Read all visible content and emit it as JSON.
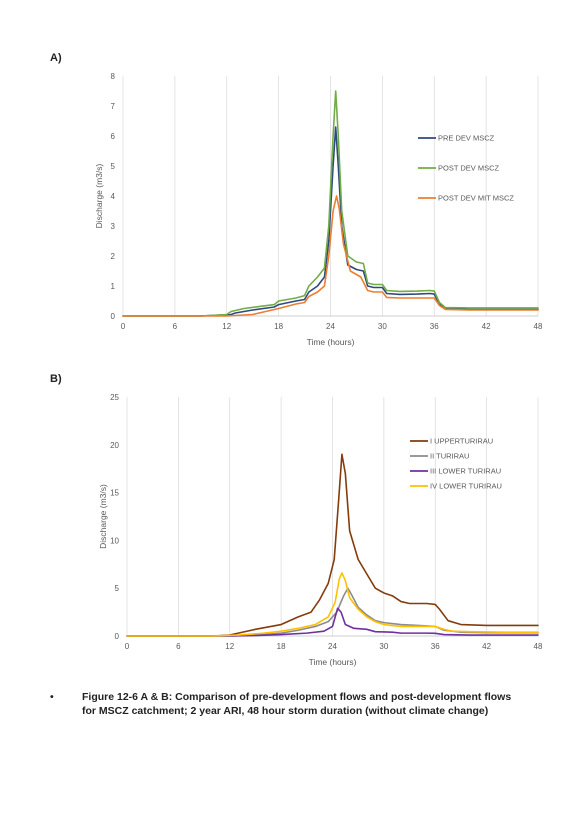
{
  "panels": {
    "a_label": "A)",
    "b_label": "B)"
  },
  "caption": {
    "bullet": "•",
    "text": "Figure 12-6 A & B: Comparison of pre-development flows and post-development flows for MSCZ catchment; 2 year ARI, 48 hour storm duration (without climate change)"
  },
  "chart_data": [
    {
      "type": "line",
      "panel": "A)",
      "xlabel": "Time (hours)",
      "ylabel": "Discharge (m3/s)",
      "xlim": [
        0,
        48
      ],
      "ylim": [
        0,
        8
      ],
      "xticks": [
        0,
        6,
        12,
        18,
        24,
        30,
        36,
        42,
        48
      ],
      "yticks": [
        0,
        1,
        2,
        3,
        4,
        5,
        6,
        7,
        8
      ],
      "grid": "vertical",
      "legend": "right",
      "series": [
        {
          "name": "PRE DEV MSCZ",
          "color": "#2e4a7d",
          "points": [
            [
              0,
              0
            ],
            [
              9,
              0
            ],
            [
              12.5,
              0.05
            ],
            [
              13,
              0.1
            ],
            [
              15,
              0.2
            ],
            [
              17.5,
              0.3
            ],
            [
              18,
              0.38
            ],
            [
              20,
              0.5
            ],
            [
              21,
              0.55
            ],
            [
              21.5,
              0.8
            ],
            [
              22.5,
              1.0
            ],
            [
              23.3,
              1.3
            ],
            [
              23.8,
              2.5
            ],
            [
              24.3,
              5.0
            ],
            [
              24.6,
              6.3
            ],
            [
              24.9,
              5.0
            ],
            [
              25.3,
              3.0
            ],
            [
              26,
              1.7
            ],
            [
              27,
              1.55
            ],
            [
              27.8,
              1.5
            ],
            [
              28.3,
              1.0
            ],
            [
              29,
              0.95
            ],
            [
              30,
              0.95
            ],
            [
              30.5,
              0.75
            ],
            [
              32,
              0.72
            ],
            [
              34,
              0.73
            ],
            [
              35.5,
              0.75
            ],
            [
              36,
              0.73
            ],
            [
              36.6,
              0.4
            ],
            [
              37.3,
              0.25
            ],
            [
              40,
              0.22
            ],
            [
              44,
              0.22
            ],
            [
              48,
              0.22
            ]
          ]
        },
        {
          "name": "POST DEV MSCZ",
          "color": "#70ad47",
          "points": [
            [
              0,
              0
            ],
            [
              9,
              0
            ],
            [
              12,
              0.05
            ],
            [
              12.5,
              0.15
            ],
            [
              14,
              0.25
            ],
            [
              17.5,
              0.38
            ],
            [
              18,
              0.5
            ],
            [
              20,
              0.6
            ],
            [
              21,
              0.68
            ],
            [
              21.5,
              1.0
            ],
            [
              22.5,
              1.3
            ],
            [
              23.3,
              1.6
            ],
            [
              23.8,
              3.0
            ],
            [
              24.3,
              6.0
            ],
            [
              24.6,
              7.5
            ],
            [
              24.9,
              6.0
            ],
            [
              25.3,
              3.5
            ],
            [
              26,
              2.0
            ],
            [
              27,
              1.8
            ],
            [
              27.8,
              1.75
            ],
            [
              28.3,
              1.1
            ],
            [
              29,
              1.05
            ],
            [
              30,
              1.05
            ],
            [
              30.5,
              0.85
            ],
            [
              32,
              0.82
            ],
            [
              34,
              0.83
            ],
            [
              35.5,
              0.85
            ],
            [
              36,
              0.83
            ],
            [
              36.6,
              0.45
            ],
            [
              37.3,
              0.28
            ],
            [
              40,
              0.27
            ],
            [
              44,
              0.27
            ],
            [
              48,
              0.27
            ]
          ]
        },
        {
          "name": "POST DEV MIT MSCZ",
          "color": "#ed7d31",
          "points": [
            [
              0,
              0
            ],
            [
              12,
              0
            ],
            [
              15,
              0.05
            ],
            [
              18,
              0.25
            ],
            [
              20,
              0.4
            ],
            [
              21,
              0.45
            ],
            [
              21.5,
              0.65
            ],
            [
              22.5,
              0.8
            ],
            [
              23.3,
              1.0
            ],
            [
              23.8,
              2.0
            ],
            [
              24.3,
              3.5
            ],
            [
              24.7,
              4.0
            ],
            [
              25,
              3.6
            ],
            [
              25.5,
              2.4
            ],
            [
              26.3,
              1.5
            ],
            [
              27.5,
              1.3
            ],
            [
              28.3,
              0.85
            ],
            [
              29,
              0.8
            ],
            [
              30,
              0.8
            ],
            [
              30.5,
              0.62
            ],
            [
              32,
              0.6
            ],
            [
              34,
              0.6
            ],
            [
              36,
              0.6
            ],
            [
              36.6,
              0.35
            ],
            [
              37.3,
              0.22
            ],
            [
              40,
              0.2
            ],
            [
              44,
              0.2
            ],
            [
              48,
              0.2
            ]
          ]
        }
      ]
    },
    {
      "type": "line",
      "panel": "B)",
      "xlabel": "Time (hours)",
      "ylabel": "Discharge (m3/s)",
      "xlim": [
        0,
        48
      ],
      "ylim": [
        0,
        25
      ],
      "xticks": [
        0,
        6,
        12,
        18,
        24,
        30,
        36,
        42,
        48
      ],
      "yticks": [
        0,
        5,
        10,
        15,
        20,
        25
      ],
      "grid": "vertical",
      "legend": "right",
      "series": [
        {
          "name": "I UPPERTURIRAU",
          "color": "#843c0c",
          "points": [
            [
              0,
              0
            ],
            [
              10,
              0
            ],
            [
              12,
              0.1
            ],
            [
              13,
              0.3
            ],
            [
              15,
              0.7
            ],
            [
              18,
              1.2
            ],
            [
              20,
              2.0
            ],
            [
              21.5,
              2.5
            ],
            [
              22.5,
              3.8
            ],
            [
              23.5,
              5.5
            ],
            [
              24.2,
              8.0
            ],
            [
              24.7,
              14.0
            ],
            [
              25.1,
              19.0
            ],
            [
              25.5,
              17.0
            ],
            [
              26,
              11.0
            ],
            [
              27,
              8.0
            ],
            [
              28,
              6.5
            ],
            [
              29,
              5.0
            ],
            [
              30,
              4.5
            ],
            [
              31,
              4.2
            ],
            [
              32,
              3.6
            ],
            [
              33,
              3.4
            ],
            [
              35,
              3.4
            ],
            [
              36,
              3.3
            ],
            [
              36.5,
              2.8
            ],
            [
              37.5,
              1.6
            ],
            [
              39,
              1.2
            ],
            [
              42,
              1.1
            ],
            [
              45,
              1.1
            ],
            [
              48,
              1.1
            ]
          ]
        },
        {
          "name": "II TURIRAU",
          "color": "#8c8c8c",
          "points": [
            [
              0,
              0
            ],
            [
              12,
              0
            ],
            [
              15,
              0.1
            ],
            [
              18,
              0.3
            ],
            [
              20,
              0.6
            ],
            [
              22,
              1.0
            ],
            [
              23.5,
              1.5
            ],
            [
              24.5,
              2.5
            ],
            [
              25.3,
              4.2
            ],
            [
              25.8,
              5.0
            ],
            [
              26.3,
              4.2
            ],
            [
              27,
              3.0
            ],
            [
              28,
              2.2
            ],
            [
              29,
              1.6
            ],
            [
              30,
              1.4
            ],
            [
              32,
              1.2
            ],
            [
              34,
              1.1
            ],
            [
              36,
              1.0
            ],
            [
              37,
              0.6
            ],
            [
              39,
              0.4
            ],
            [
              42,
              0.35
            ],
            [
              48,
              0.35
            ]
          ]
        },
        {
          "name": "III LOWER TURIRAU",
          "color": "#7030a0",
          "points": [
            [
              0,
              0
            ],
            [
              12,
              0
            ],
            [
              15,
              0.05
            ],
            [
              18,
              0.15
            ],
            [
              21,
              0.3
            ],
            [
              23,
              0.5
            ],
            [
              24,
              1.0
            ],
            [
              24.6,
              2.9
            ],
            [
              25,
              2.5
            ],
            [
              25.5,
              1.2
            ],
            [
              26.5,
              0.8
            ],
            [
              28,
              0.7
            ],
            [
              29,
              0.45
            ],
            [
              31,
              0.4
            ],
            [
              32,
              0.3
            ],
            [
              35,
              0.3
            ],
            [
              36,
              0.28
            ],
            [
              37,
              0.15
            ],
            [
              40,
              0.1
            ],
            [
              48,
              0.1
            ]
          ]
        },
        {
          "name": "IV LOWER TURIRAU",
          "color": "#ffc000",
          "points": [
            [
              0,
              0
            ],
            [
              10,
              0
            ],
            [
              13,
              0.1
            ],
            [
              16,
              0.3
            ],
            [
              18,
              0.5
            ],
            [
              20,
              0.8
            ],
            [
              22,
              1.2
            ],
            [
              23.5,
              2.0
            ],
            [
              24.3,
              3.5
            ],
            [
              24.8,
              6.0
            ],
            [
              25.1,
              6.6
            ],
            [
              25.5,
              5.8
            ],
            [
              26,
              4.0
            ],
            [
              27,
              2.8
            ],
            [
              28,
              2.0
            ],
            [
              29,
              1.5
            ],
            [
              30,
              1.2
            ],
            [
              32,
              1.0
            ],
            [
              34,
              1.0
            ],
            [
              36,
              1.0
            ],
            [
              37,
              0.7
            ],
            [
              38,
              0.5
            ],
            [
              40,
              0.45
            ],
            [
              44,
              0.4
            ],
            [
              48,
              0.4
            ]
          ]
        }
      ]
    }
  ]
}
